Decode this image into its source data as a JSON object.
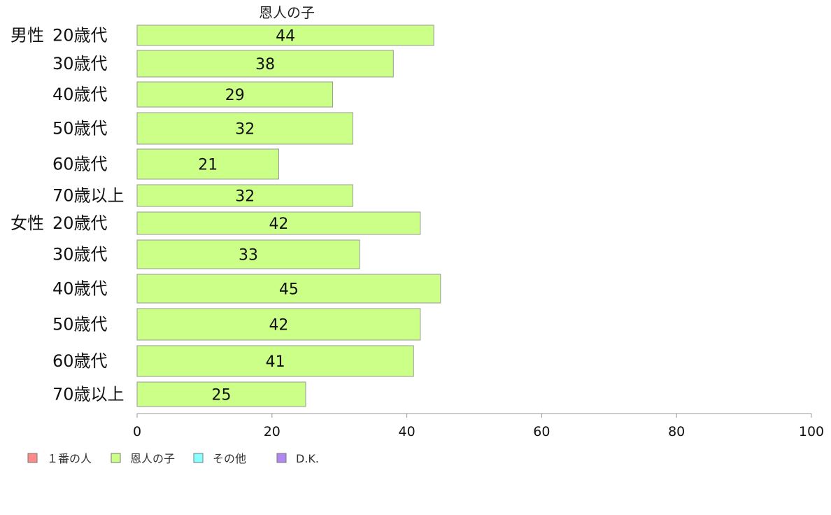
{
  "chart_data": {
    "type": "bar",
    "orientation": "horizontal",
    "title": "恩人の子",
    "xlim": [
      0,
      100
    ],
    "xticks": [
      "0",
      "20",
      "40",
      "60",
      "80",
      "100"
    ],
    "grid": false,
    "legend_position": "bottom-left",
    "group_labels": [
      "男性",
      "女性"
    ],
    "categories": [
      "20歳代",
      "30歳代",
      "40歳代",
      "50歳代",
      "60歳代",
      "70歳以上",
      "20歳代",
      "30歳代",
      "40歳代",
      "50歳代",
      "60歳代",
      "70歳以上"
    ],
    "series": [
      {
        "name": "恩人の子",
        "color": "#ccff88",
        "values": [
          44,
          38,
          29,
          32,
          21,
          32,
          42,
          33,
          45,
          42,
          41,
          25
        ]
      }
    ],
    "legend": [
      {
        "label": "１番の人",
        "color": "#ff8a8a"
      },
      {
        "label": "恩人の子",
        "color": "#ccff88"
      },
      {
        "label": "その他",
        "color": "#88ffff"
      },
      {
        "label": "D.K.",
        "color": "#b088f0"
      }
    ],
    "colors": {
      "bar_stroke": "#999999",
      "axis": "#999999"
    }
  }
}
